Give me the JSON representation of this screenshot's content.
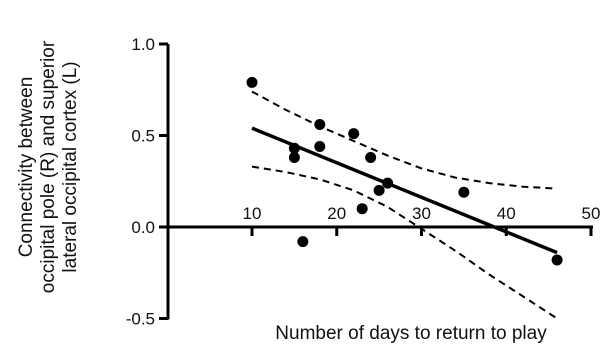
{
  "chart_data": {
    "type": "scatter",
    "title": "",
    "xlabel": "Number of days to return to play",
    "ylabel": "Connectivity between occipital pole (R) and superior lateral occipital cortex (L)",
    "ylabel_lines": [
      "Connectivity between",
      "occipital pole (R) and superior",
      "lateral occipital cortex (L)"
    ],
    "xlim": [
      10,
      50
    ],
    "ylim": [
      -0.5,
      1.0
    ],
    "x_ticks": [
      10,
      20,
      30,
      40,
      50
    ],
    "x_tick_labels": [
      "10",
      "20",
      "30",
      "40",
      "50"
    ],
    "y_ticks": [
      -0.5,
      0.0,
      0.5,
      1.0
    ],
    "y_tick_labels": [
      "-0.5",
      "0.0",
      "0.5",
      "1.0"
    ],
    "grid": false,
    "points": [
      {
        "x": 10,
        "y": 0.79
      },
      {
        "x": 15,
        "y": 0.43
      },
      {
        "x": 15,
        "y": 0.38
      },
      {
        "x": 16,
        "y": -0.08
      },
      {
        "x": 18,
        "y": 0.56
      },
      {
        "x": 18,
        "y": 0.44
      },
      {
        "x": 22,
        "y": 0.51
      },
      {
        "x": 23,
        "y": 0.1
      },
      {
        "x": 24,
        "y": 0.38
      },
      {
        "x": 25,
        "y": 0.2
      },
      {
        "x": 26,
        "y": 0.24
      },
      {
        "x": 35,
        "y": 0.19
      },
      {
        "x": 46,
        "y": -0.18
      }
    ],
    "fit_line": {
      "x": [
        10,
        46
      ],
      "y": [
        0.54,
        -0.14
      ]
    },
    "ci_upper": {
      "x": [
        10,
        14,
        18,
        22,
        26,
        30,
        34,
        38,
        42,
        46
      ],
      "y": [
        0.74,
        0.64,
        0.55,
        0.47,
        0.39,
        0.32,
        0.27,
        0.24,
        0.22,
        0.21
      ]
    },
    "ci_lower": {
      "x": [
        10,
        14,
        18,
        22,
        26,
        30,
        34,
        38,
        42,
        46
      ],
      "y": [
        0.33,
        0.3,
        0.26,
        0.2,
        0.11,
        -0.01,
        -0.13,
        -0.26,
        -0.38,
        -0.5
      ]
    },
    "colors": {
      "marks": "#000000",
      "background": "#ffffff"
    }
  }
}
